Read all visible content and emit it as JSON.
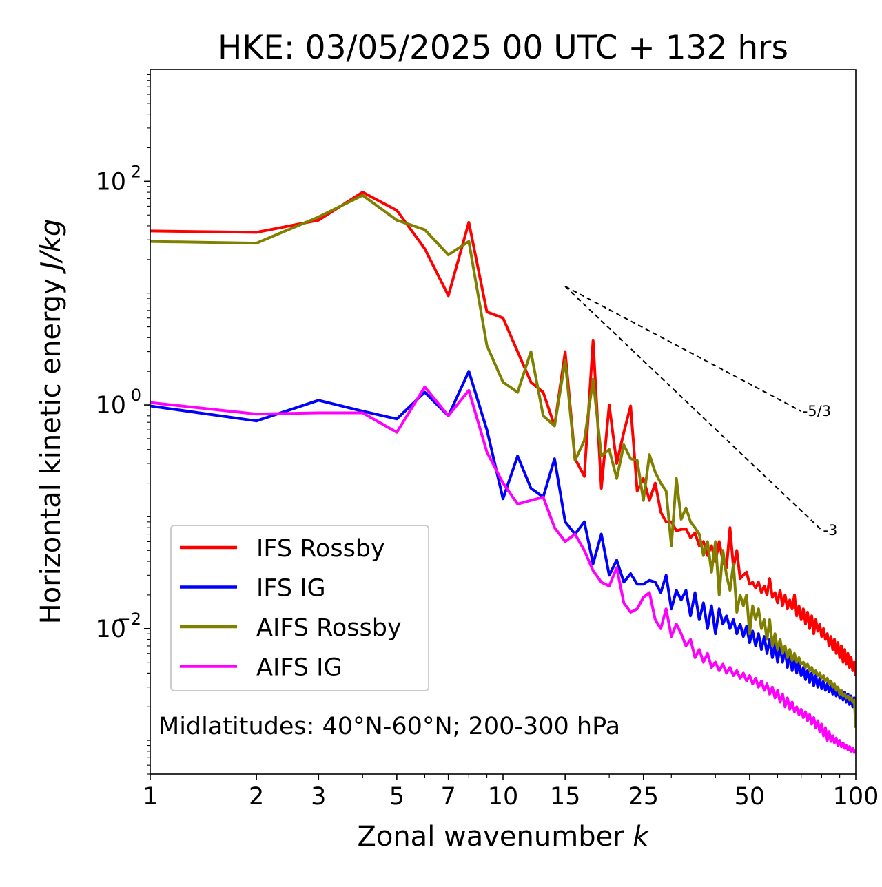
{
  "chart_data": {
    "type": "line",
    "title": "HKE: 03/05/2025 00 UTC + 132 hrs",
    "xlabel_text": "Zonal wavenumber ",
    "xlabel_var": "k",
    "ylabel_text": "Horizontal kinetic energy ",
    "ylabel_var": "J/kg",
    "x_scale": "log",
    "y_scale": "log",
    "xlim": [
      1,
      100
    ],
    "ylim": [
      0.0005,
      1000
    ],
    "x_ticks": [
      1,
      2,
      3,
      5,
      7,
      10,
      15,
      25,
      50,
      100
    ],
    "x_tick_labels": [
      "1",
      "2",
      "3",
      "5",
      "7",
      "10",
      "15",
      "25",
      "50",
      "100"
    ],
    "y_ticks": [
      0.01,
      1,
      100
    ],
    "y_tick_base": [
      "10",
      "10",
      "10"
    ],
    "y_tick_exp": [
      "−2",
      "0",
      "2"
    ],
    "legend_position": "lower-left",
    "annotation": "Midlatitudes: 40°N-60°N; 200-300 hPa",
    "slope_lines": [
      {
        "label": "-5/3",
        "x": [
          15,
          70
        ],
        "y": [
          11.5,
          0.88
        ]
      },
      {
        "label": "-3",
        "x": [
          15,
          80
        ],
        "y": [
          11.5,
          0.076
        ]
      }
    ],
    "series": [
      {
        "name": "IFS Rossby",
        "color": "#ff0000",
        "x": [
          1,
          2,
          3,
          4,
          5,
          6,
          7,
          8,
          9,
          10,
          11,
          12,
          13,
          14,
          15,
          16,
          17,
          18,
          19,
          20,
          21,
          22,
          23,
          24,
          25,
          26,
          27,
          28,
          29,
          30,
          31,
          32,
          33,
          34,
          35,
          36,
          37,
          38,
          39,
          40,
          41,
          42,
          43,
          44,
          45,
          46,
          47,
          48,
          49,
          50,
          51,
          52,
          53,
          54,
          55,
          56,
          57,
          58,
          59,
          60,
          61,
          62,
          63,
          64,
          65,
          66,
          67,
          68,
          69,
          70,
          71,
          72,
          73,
          74,
          75,
          76,
          77,
          78,
          79,
          80,
          81,
          82,
          83,
          84,
          85,
          86,
          87,
          88,
          89,
          90,
          91,
          92,
          93,
          94,
          95,
          96,
          97,
          98,
          99,
          100
        ],
        "y": [
          36,
          35,
          45,
          80,
          55,
          25,
          9.5,
          43,
          6.8,
          6.0,
          3.0,
          1.6,
          1.3,
          0.65,
          3.0,
          0.33,
          0.23,
          3.8,
          0.18,
          1.0,
          0.3,
          0.57,
          0.98,
          0.17,
          0.22,
          0.14,
          0.2,
          0.11,
          0.09,
          0.09,
          0.075,
          0.077,
          0.078,
          0.065,
          0.072,
          0.055,
          0.06,
          0.045,
          0.055,
          0.04,
          0.06,
          0.04,
          0.035,
          0.08,
          0.035,
          0.05,
          0.028,
          0.03,
          0.032,
          0.025,
          0.026,
          0.023,
          0.026,
          0.021,
          0.024,
          0.02,
          0.028,
          0.019,
          0.021,
          0.017,
          0.022,
          0.016,
          0.02,
          0.015,
          0.018,
          0.015,
          0.02,
          0.013,
          0.016,
          0.012,
          0.015,
          0.011,
          0.014,
          0.01,
          0.013,
          0.009,
          0.012,
          0.0095,
          0.011,
          0.0085,
          0.01,
          0.008,
          0.009,
          0.007,
          0.0085,
          0.0065,
          0.008,
          0.006,
          0.0075,
          0.0055,
          0.007,
          0.005,
          0.0065,
          0.0048,
          0.006,
          0.0045,
          0.0055,
          0.0042,
          0.005,
          0.0038
        ]
      },
      {
        "name": "IFS IG",
        "color": "#0000ff",
        "x": [
          1,
          2,
          3,
          4,
          5,
          6,
          7,
          8,
          9,
          10,
          11,
          12,
          13,
          14,
          15,
          16,
          17,
          18,
          19,
          20,
          21,
          22,
          23,
          24,
          25,
          26,
          27,
          28,
          29,
          30,
          31,
          32,
          33,
          34,
          35,
          36,
          37,
          38,
          39,
          40,
          41,
          42,
          43,
          44,
          45,
          46,
          47,
          48,
          49,
          50,
          51,
          52,
          53,
          54,
          55,
          56,
          57,
          58,
          59,
          60,
          61,
          62,
          63,
          64,
          65,
          66,
          67,
          68,
          69,
          70,
          71,
          72,
          73,
          74,
          75,
          76,
          77,
          78,
          79,
          80,
          81,
          82,
          83,
          84,
          85,
          86,
          87,
          88,
          89,
          90,
          91,
          92,
          93,
          94,
          95,
          96,
          97,
          98,
          99,
          100
        ],
        "y": [
          0.98,
          0.72,
          1.1,
          0.88,
          0.75,
          1.3,
          0.8,
          2.0,
          0.6,
          0.145,
          0.35,
          0.18,
          0.15,
          0.33,
          0.09,
          0.07,
          0.09,
          0.038,
          0.07,
          0.03,
          0.041,
          0.026,
          0.031,
          0.025,
          0.025,
          0.027,
          0.026,
          0.021,
          0.03,
          0.015,
          0.022,
          0.018,
          0.022,
          0.013,
          0.021,
          0.012,
          0.017,
          0.01,
          0.016,
          0.009,
          0.015,
          0.011,
          0.013,
          0.01,
          0.012,
          0.009,
          0.011,
          0.0085,
          0.0105,
          0.0075,
          0.0095,
          0.007,
          0.009,
          0.0065,
          0.0085,
          0.006,
          0.008,
          0.0055,
          0.0075,
          0.005,
          0.007,
          0.005,
          0.0065,
          0.0045,
          0.006,
          0.0042,
          0.0055,
          0.004,
          0.005,
          0.0038,
          0.0045,
          0.0035,
          0.0042,
          0.0033,
          0.004,
          0.0031,
          0.0038,
          0.003,
          0.0036,
          0.0029,
          0.0034,
          0.0028,
          0.0032,
          0.0027,
          0.0031,
          0.0026,
          0.003,
          0.0025,
          0.0029,
          0.0024,
          0.0028,
          0.0023,
          0.0027,
          0.0022,
          0.0026,
          0.0021,
          0.0025,
          0.002,
          0.0024,
          0.0019
        ]
      },
      {
        "name": "AIFS Rossby",
        "color": "#808000",
        "x": [
          1,
          2,
          3,
          4,
          5,
          6,
          7,
          8,
          9,
          10,
          11,
          12,
          13,
          14,
          15,
          16,
          17,
          18,
          19,
          20,
          21,
          22,
          23,
          24,
          25,
          26,
          27,
          28,
          29,
          30,
          31,
          32,
          33,
          34,
          35,
          36,
          37,
          38,
          39,
          40,
          41,
          42,
          43,
          44,
          45,
          46,
          47,
          48,
          49,
          50,
          51,
          52,
          53,
          54,
          55,
          56,
          57,
          58,
          59,
          60,
          61,
          62,
          63,
          64,
          65,
          66,
          67,
          68,
          69,
          70,
          71,
          72,
          73,
          74,
          75,
          76,
          77,
          78,
          79,
          80,
          81,
          82,
          83,
          84,
          85,
          86,
          87,
          88,
          89,
          90,
          91,
          92,
          93,
          94,
          95,
          96,
          97,
          98,
          99,
          100
        ],
        "y": [
          29,
          28,
          48,
          75,
          45,
          37,
          22,
          29,
          3.4,
          1.6,
          1.3,
          3.0,
          0.8,
          0.65,
          2.5,
          0.32,
          0.48,
          1.7,
          0.35,
          0.4,
          0.22,
          0.44,
          0.33,
          0.32,
          0.14,
          0.36,
          0.25,
          0.2,
          0.17,
          0.055,
          0.22,
          0.095,
          0.12,
          0.09,
          0.08,
          0.07,
          0.045,
          0.06,
          0.032,
          0.06,
          0.02,
          0.05,
          0.03,
          0.022,
          0.038,
          0.014,
          0.02,
          0.016,
          0.02,
          0.009,
          0.016,
          0.012,
          0.015,
          0.01,
          0.012,
          0.008,
          0.012,
          0.007,
          0.009,
          0.0065,
          0.008,
          0.006,
          0.007,
          0.0055,
          0.0065,
          0.0052,
          0.006,
          0.005,
          0.0055,
          0.0048,
          0.005,
          0.0045,
          0.0048,
          0.0042,
          0.0045,
          0.004,
          0.0042,
          0.0038,
          0.004,
          0.0036,
          0.0038,
          0.0034,
          0.0036,
          0.0032,
          0.0034,
          0.003,
          0.0032,
          0.0028,
          0.003,
          0.0026,
          0.0028,
          0.0025,
          0.0026,
          0.0024,
          0.0025,
          0.0023,
          0.0024,
          0.0022,
          0.0023,
          0.0013
        ]
      },
      {
        "name": "AIFS IG",
        "color": "#ff00ff",
        "x": [
          1,
          2,
          3,
          4,
          5,
          6,
          7,
          8,
          9,
          10,
          11,
          12,
          13,
          14,
          15,
          16,
          17,
          18,
          19,
          20,
          21,
          22,
          23,
          24,
          25,
          26,
          27,
          28,
          29,
          30,
          31,
          32,
          33,
          34,
          35,
          36,
          37,
          38,
          39,
          40,
          41,
          42,
          43,
          44,
          45,
          46,
          47,
          48,
          49,
          50,
          51,
          52,
          53,
          54,
          55,
          56,
          57,
          58,
          59,
          60,
          61,
          62,
          63,
          64,
          65,
          66,
          67,
          68,
          69,
          70,
          71,
          72,
          73,
          74,
          75,
          76,
          77,
          78,
          79,
          80,
          81,
          82,
          83,
          84,
          85,
          86,
          87,
          88,
          89,
          90,
          91,
          92,
          93,
          94,
          95,
          96,
          97,
          98,
          99,
          100
        ],
        "y": [
          1.05,
          0.83,
          0.85,
          0.85,
          0.57,
          1.45,
          0.8,
          1.35,
          0.38,
          0.2,
          0.13,
          0.14,
          0.15,
          0.08,
          0.06,
          0.07,
          0.05,
          0.033,
          0.026,
          0.024,
          0.035,
          0.017,
          0.014,
          0.015,
          0.019,
          0.021,
          0.012,
          0.01,
          0.015,
          0.0085,
          0.011,
          0.009,
          0.007,
          0.008,
          0.0055,
          0.0065,
          0.005,
          0.006,
          0.0045,
          0.005,
          0.0042,
          0.0048,
          0.004,
          0.0045,
          0.0038,
          0.0042,
          0.0036,
          0.004,
          0.0034,
          0.0038,
          0.0032,
          0.0036,
          0.003,
          0.0034,
          0.0028,
          0.0032,
          0.0026,
          0.003,
          0.0024,
          0.0028,
          0.0022,
          0.0026,
          0.002,
          0.0024,
          0.0019,
          0.0022,
          0.0018,
          0.002,
          0.0017,
          0.0019,
          0.0016,
          0.0018,
          0.0015,
          0.0017,
          0.0014,
          0.0016,
          0.0013,
          0.0015,
          0.0012,
          0.0014,
          0.0011,
          0.0013,
          0.001,
          0.0012,
          0.00098,
          0.0011,
          0.00095,
          0.00105,
          0.0009,
          0.001,
          0.00088,
          0.00095,
          0.00085,
          0.0009,
          0.00082,
          0.00088,
          0.0008,
          0.00085,
          0.00078,
          0.00082
        ]
      }
    ]
  }
}
